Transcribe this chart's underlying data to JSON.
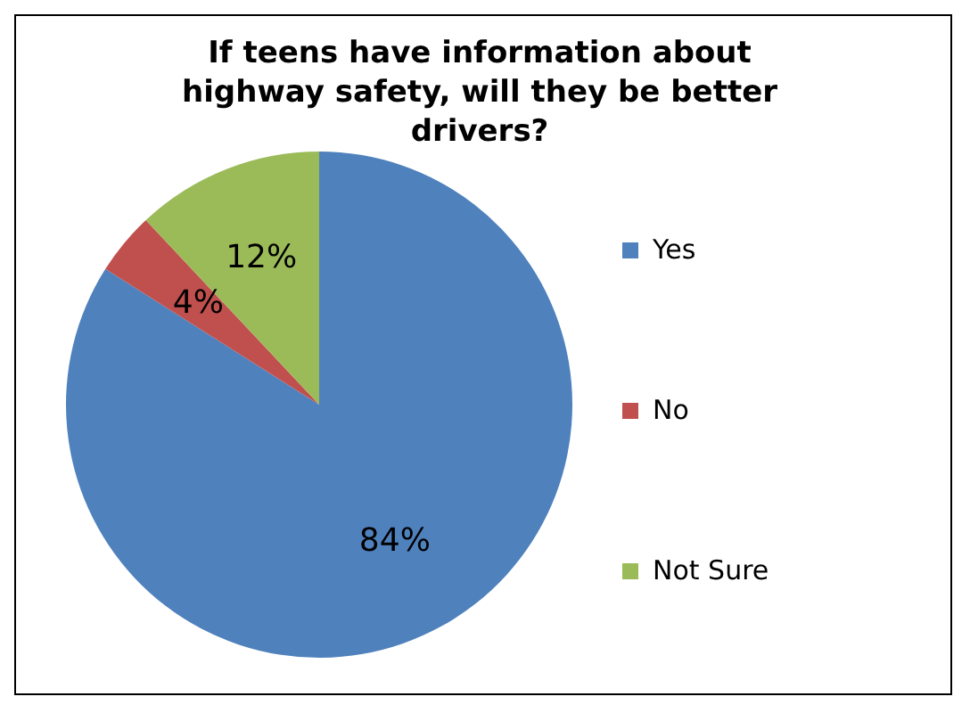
{
  "chart_data": {
    "type": "pie",
    "title": "If teens have information about highway safety, will they be better drivers?",
    "categories": [
      "Yes",
      "No",
      "Not Sure"
    ],
    "values": [
      84,
      4,
      12
    ],
    "value_labels": [
      "84%",
      "4%",
      "12%"
    ],
    "colors": [
      "#4f81bd",
      "#c0504d",
      "#9bbb59"
    ],
    "legend": "right"
  }
}
